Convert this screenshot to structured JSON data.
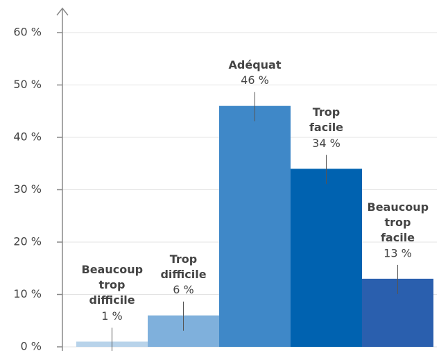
{
  "chart_data": {
    "type": "bar",
    "categories": [
      "Beaucoup trop difficile",
      "Trop difficile",
      "Adéquat",
      "Trop facile",
      "Beaucoup trop facile"
    ],
    "values": [
      1,
      6,
      46,
      34,
      13
    ],
    "value_labels": [
      "1 %",
      "6 %",
      "46 %",
      "34 %",
      "13 %"
    ],
    "colors": [
      "#b8d3ea",
      "#7fb0dc",
      "#3f88c8",
      "#0062b0",
      "#2a5fae"
    ],
    "ylim": [
      0,
      60
    ],
    "yticks": [
      {
        "value": 0,
        "label": "0 %"
      },
      {
        "value": 10,
        "label": "10 %"
      },
      {
        "value": 20,
        "label": "20 %"
      },
      {
        "value": 30,
        "label": "30 %"
      },
      {
        "value": 40,
        "label": "40 %"
      },
      {
        "value": 50,
        "label": "50 %"
      },
      {
        "value": 60,
        "label": "60 %"
      }
    ],
    "grid": true
  }
}
